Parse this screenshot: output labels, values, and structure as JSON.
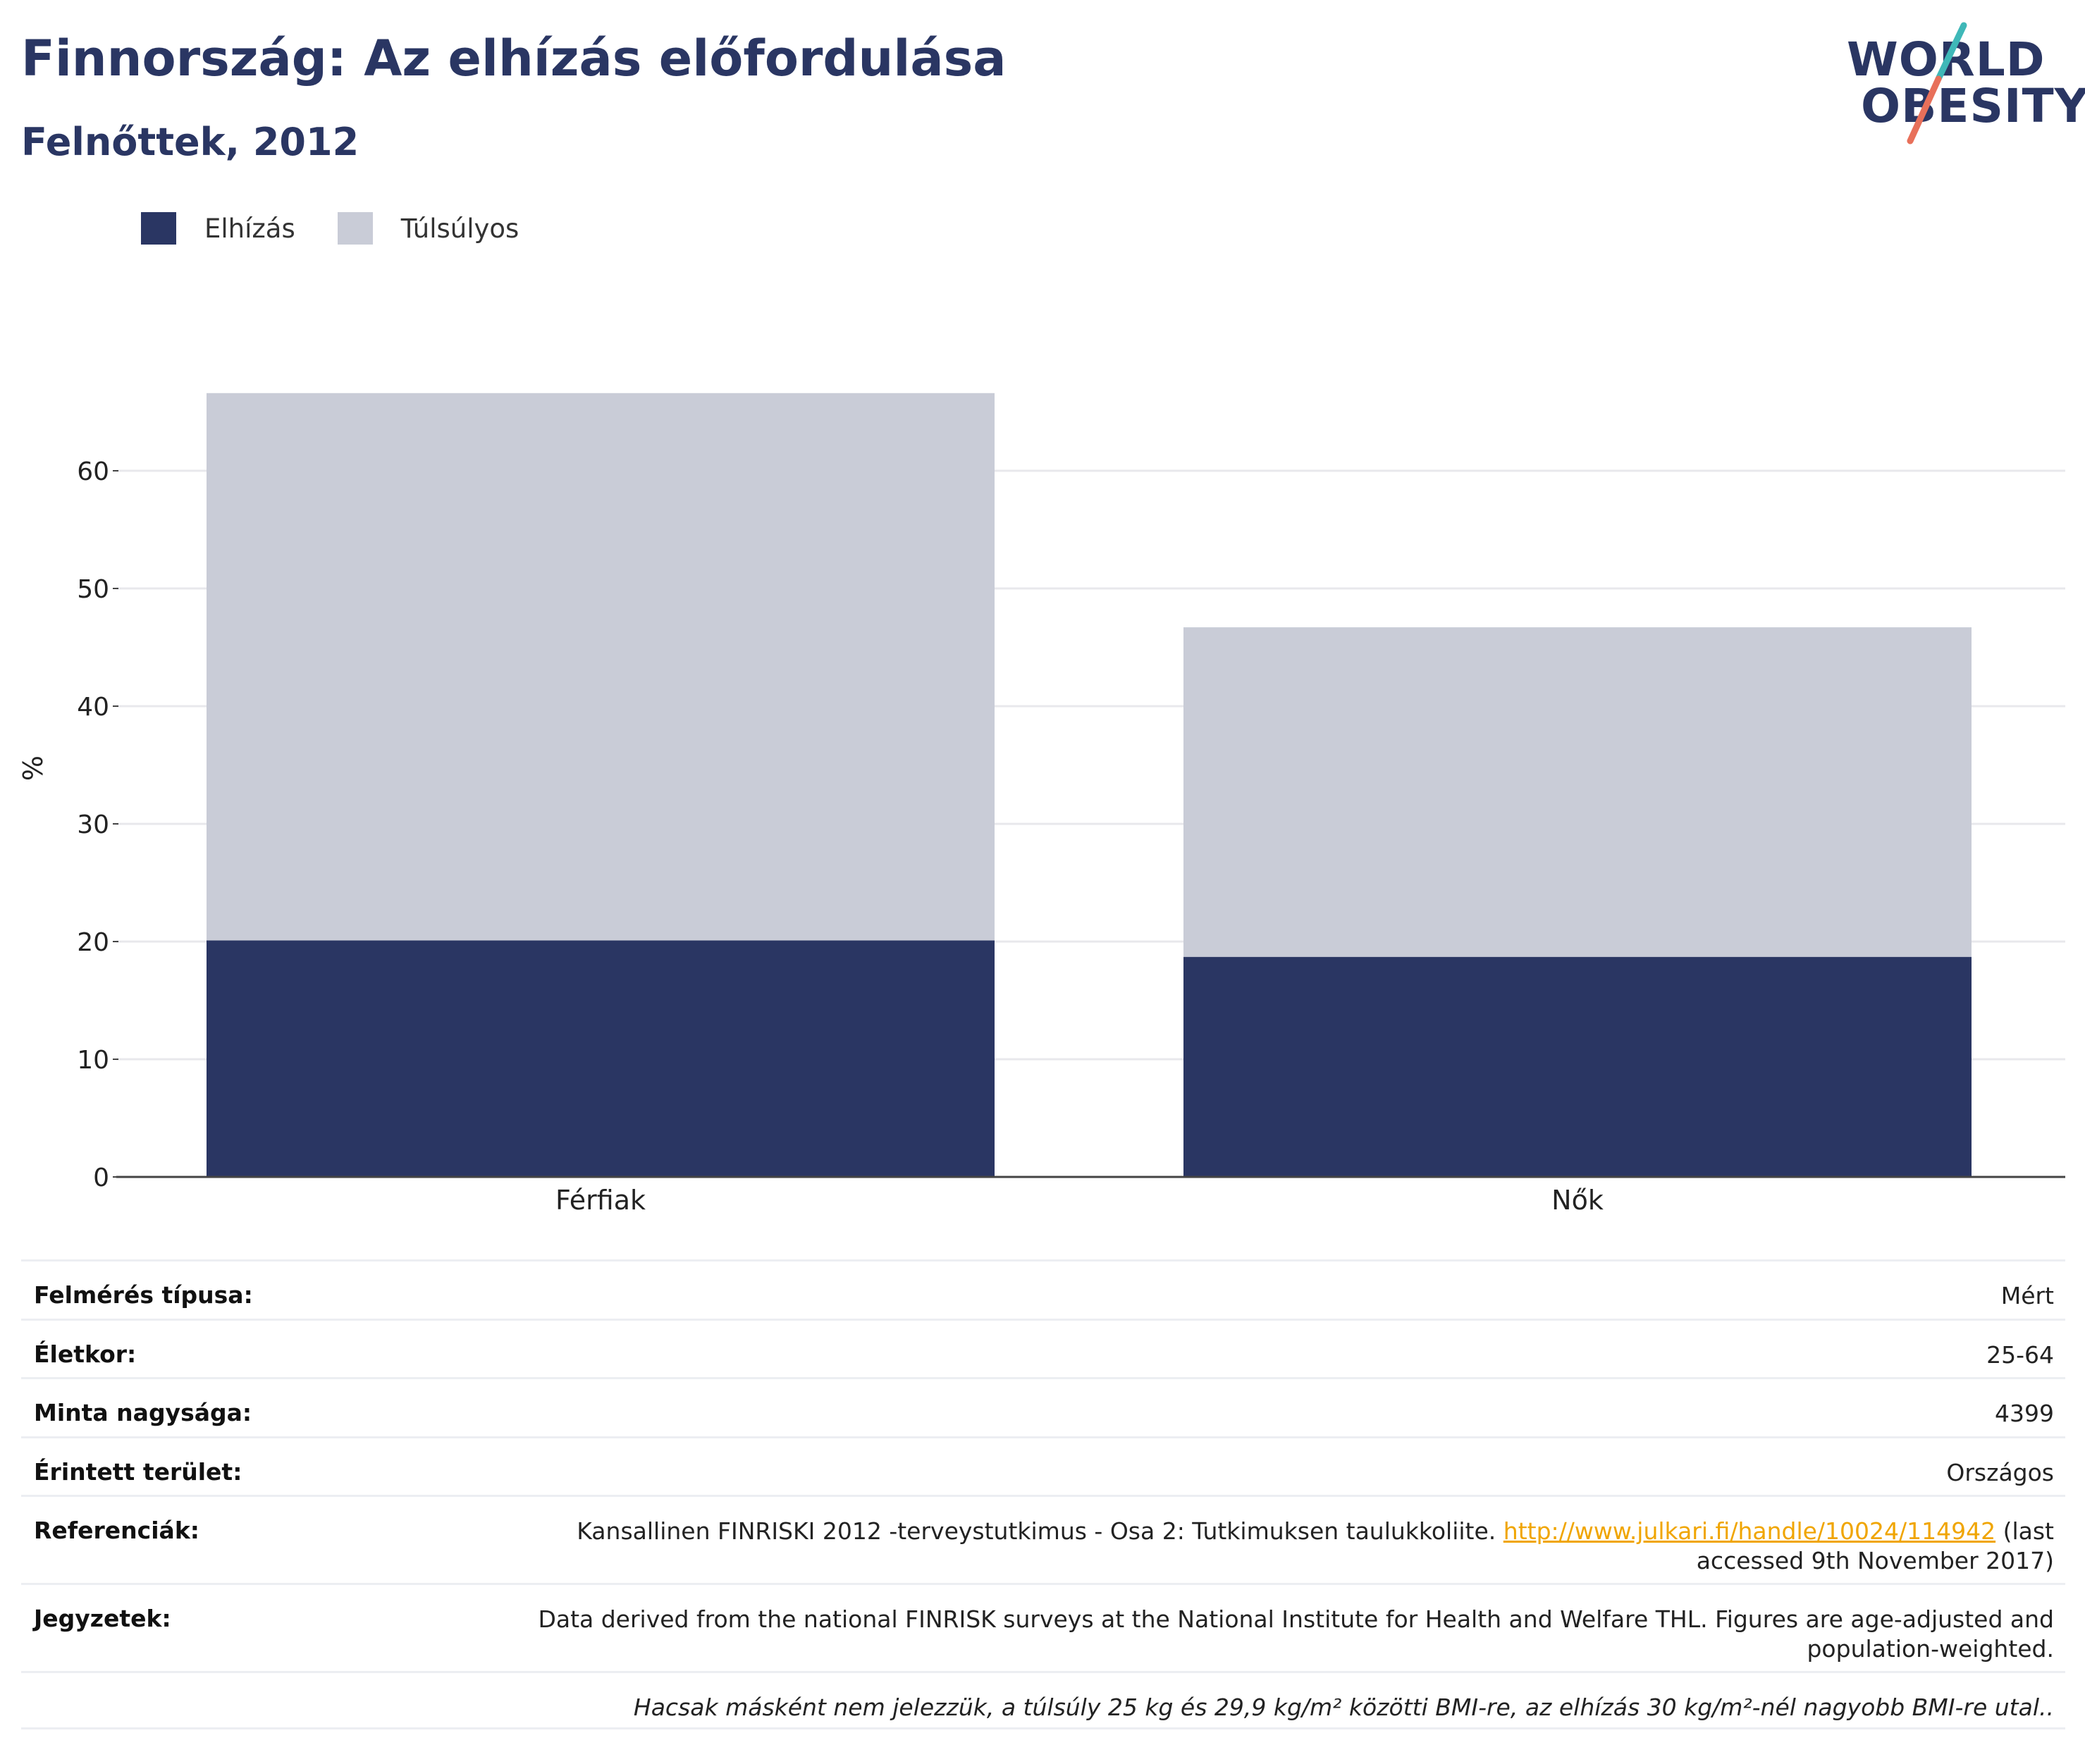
{
  "title": "Finnország: Az elhízás előfordulása",
  "subtitle": "Felnőttek, 2012",
  "logo": {
    "line1": "WORLD",
    "line2": "OBESITY"
  },
  "colors": {
    "obesity": "#2a3663",
    "overweight": "#c9ccd7",
    "title": "#2a3663",
    "link": "#f0a500",
    "logo_teal": "#3fb8b8",
    "logo_coral": "#e8705a"
  },
  "legend": [
    {
      "label": "Elhízás",
      "color": "#2a3663"
    },
    {
      "label": "Túlsúlyos",
      "color": "#c9ccd7"
    }
  ],
  "chart_data": {
    "type": "bar",
    "stacked": true,
    "categories": [
      "Férfiak",
      "Nők"
    ],
    "series": [
      {
        "name": "Elhízás",
        "values": [
          20.1,
          18.7
        ],
        "color": "#2a3663"
      },
      {
        "name": "Túlsúlyos",
        "values": [
          46.5,
          28.0
        ],
        "color": "#c9ccd7"
      }
    ],
    "ylabel": "%",
    "xlabel": "",
    "ylim": [
      0,
      70
    ],
    "yticks": [
      0,
      10,
      20,
      30,
      40,
      50,
      60
    ],
    "grid": true,
    "legend_position": "top-left"
  },
  "table": [
    {
      "key": "Felmérés típusa:",
      "value": "Mért"
    },
    {
      "key": "Életkor:",
      "value": "25-64"
    },
    {
      "key": "Minta nagysága:",
      "value": "4399"
    },
    {
      "key": "Érintett terület:",
      "value": "Országos"
    },
    {
      "key": "Referenciák:",
      "value_before": "Kansallinen FINRISKI 2012 -terveystutkimus - Osa 2: Tutkimuksen taulukkoliite. ",
      "link": "http://www.julkari.fi/handle/10024/114942",
      "value_after": " (last accessed 9th November 2017)"
    },
    {
      "key": "Jegyzetek:",
      "value": "Data derived from the national FINRISK surveys at the National Institute for Health and Welfare THL. Figures are age-adjusted and population-weighted."
    }
  ],
  "footnote": "Hacsak másként nem jelezzük, a túlsúly 25 kg és 29,9 kg/m² közötti BMI-re, az elhízás 30 kg/m²-nél nagyobb BMI-re utal.."
}
